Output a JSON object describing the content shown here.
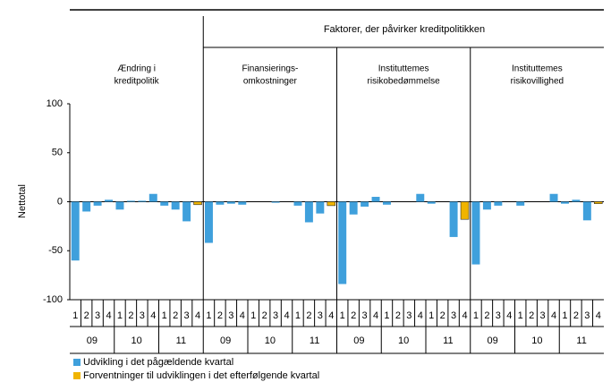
{
  "chart_data": {
    "type": "bar",
    "header": "Faktorer, der påvirker kreditpolitikken",
    "ylabel": "Nettotal",
    "ylim": [
      -100,
      100
    ],
    "yticks": [
      -100,
      -50,
      0,
      50,
      100
    ],
    "quarters": [
      "1",
      "2",
      "3",
      "4"
    ],
    "years": [
      "09",
      "10",
      "11"
    ],
    "series": [
      {
        "name": "Udvikling i det pågældende kvartal",
        "color": "#3fa0dc"
      },
      {
        "name": "Forventninger til udviklingen i det efterfølgende kvartal",
        "color": "#f0b400"
      }
    ],
    "panels": [
      {
        "title": [
          "Ændring i",
          "kreditpolitik"
        ],
        "series": [
          {
            "values": [
              -60,
              -10,
              -4,
              2,
              -8,
              1,
              1,
              8,
              -4,
              -8,
              -20,
              null
            ]
          },
          {
            "values": [
              null,
              null,
              null,
              null,
              null,
              null,
              null,
              null,
              null,
              null,
              null,
              -3
            ]
          }
        ]
      },
      {
        "title": [
          "Finansierings-",
          "omkostninger"
        ],
        "series": [
          {
            "values": [
              -42,
              -3,
              -2,
              -3,
              0,
              0,
              -1,
              0,
              -4,
              -21,
              -12,
              null
            ]
          },
          {
            "values": [
              null,
              null,
              null,
              null,
              null,
              null,
              null,
              null,
              null,
              null,
              null,
              -4
            ]
          }
        ]
      },
      {
        "title": [
          "Instituttemes",
          "risikobedømmelse"
        ],
        "series": [
          {
            "values": [
              -84,
              -13,
              -5,
              5,
              -3,
              0,
              0,
              8,
              -2,
              0,
              -36,
              null
            ]
          },
          {
            "values": [
              null,
              null,
              null,
              null,
              null,
              null,
              null,
              null,
              null,
              null,
              null,
              -18
            ]
          }
        ]
      },
      {
        "title": [
          "Instituttemes",
          "risikovillighed"
        ],
        "series": [
          {
            "values": [
              -64,
              -8,
              -4,
              0,
              -4,
              0,
              0,
              8,
              -2,
              2,
              -19,
              null
            ]
          },
          {
            "values": [
              null,
              null,
              null,
              null,
              null,
              null,
              null,
              null,
              null,
              null,
              null,
              -2
            ]
          }
        ]
      }
    ]
  }
}
